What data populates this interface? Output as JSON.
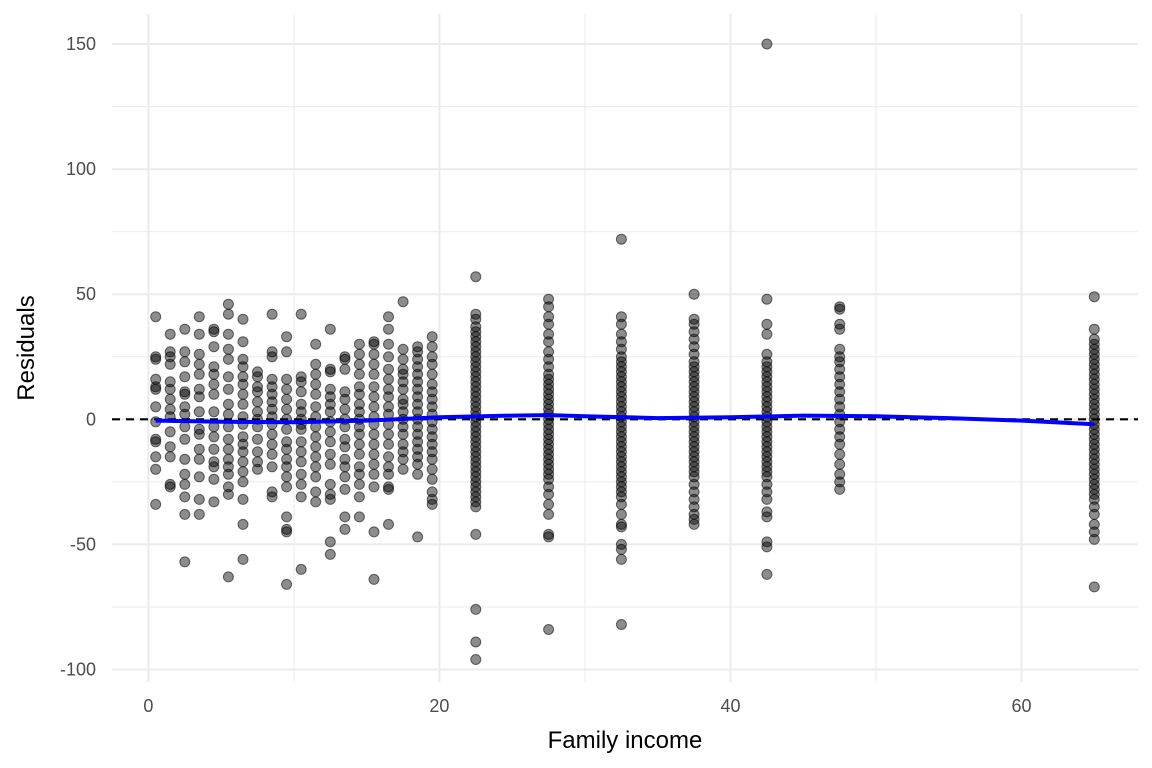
{
  "chart_data": {
    "type": "scatter",
    "title": "",
    "xlabel": "Family income",
    "ylabel": "Residuals",
    "xlim": [
      -2.5,
      68
    ],
    "ylim": [
      -105,
      162
    ],
    "x_ticks": [
      0,
      20,
      40,
      60
    ],
    "x_tick_labels": [
      "0",
      "20",
      "40",
      "60"
    ],
    "y_ticks": [
      -100,
      -50,
      0,
      50,
      100,
      150
    ],
    "y_tick_labels": [
      "-100",
      "-50",
      "0",
      "50",
      "100",
      "150"
    ],
    "grid": true,
    "legend": "none",
    "colors": {
      "points": "#000000",
      "smooth": "#0000ff",
      "reference": "#000000",
      "grid": "#ebebeb"
    },
    "reference_line": {
      "y": 0,
      "style": "dashed"
    },
    "columns": [
      {
        "x": 0.5,
        "y": [
          41,
          25,
          24,
          16,
          13,
          12,
          5,
          -1,
          -8,
          -9,
          -15,
          -20,
          -34
        ]
      },
      {
        "x": 1.5,
        "y": [
          34,
          27,
          25,
          22,
          15,
          12,
          8,
          4,
          1,
          -5,
          -11,
          -15,
          -26,
          -27
        ]
      },
      {
        "x": 2.5,
        "y": [
          36,
          27,
          23,
          17,
          11,
          10,
          5,
          2,
          -3,
          -8,
          -16,
          -22,
          -26,
          -31,
          -38,
          -57
        ]
      },
      {
        "x": 3.5,
        "y": [
          41,
          34,
          26,
          22,
          18,
          12,
          9,
          3,
          -4,
          -6,
          -12,
          -16,
          -23,
          -32,
          -38
        ]
      },
      {
        "x": 4.5,
        "y": [
          36,
          35,
          29,
          21,
          18,
          14,
          10,
          3,
          -3,
          -7,
          -12,
          -17,
          -19,
          -24,
          -33
        ]
      },
      {
        "x": 5.5,
        "y": [
          46,
          42,
          34,
          28,
          24,
          17,
          12,
          6,
          2,
          -3,
          -8,
          -12,
          -16,
          -19,
          -22,
          -27,
          -30,
          -63
        ]
      },
      {
        "x": 6.5,
        "y": [
          40,
          31,
          24,
          21,
          17,
          14,
          10,
          6,
          1,
          -2,
          -7,
          -10,
          -13,
          -17,
          -21,
          -25,
          -32,
          -42,
          -56
        ]
      },
      {
        "x": 7.5,
        "y": [
          19,
          17,
          13,
          11,
          7,
          3,
          0,
          -3,
          -8,
          -13,
          -17,
          -20
        ]
      },
      {
        "x": 8.5,
        "y": [
          42,
          27,
          25,
          16,
          13,
          10,
          7,
          4,
          1,
          -2,
          -6,
          -10,
          -14,
          -19,
          -29,
          -31
        ]
      },
      {
        "x": 9.5,
        "y": [
          33,
          27,
          16,
          12,
          8,
          4,
          0,
          -4,
          -9,
          -12,
          -16,
          -19,
          -23,
          -27,
          -39,
          -44,
          -45,
          -66
        ]
      },
      {
        "x": 10.5,
        "y": [
          42,
          17,
          15,
          11,
          6,
          3,
          0,
          -2,
          -4,
          -9,
          -13,
          -17,
          -22,
          -26,
          -31,
          -60
        ]
      },
      {
        "x": 11.5,
        "y": [
          30,
          22,
          18,
          14,
          10,
          5,
          1,
          -3,
          -7,
          -11,
          -15,
          -19,
          -23,
          -29,
          -33
        ]
      },
      {
        "x": 12.5,
        "y": [
          36,
          20,
          19,
          12,
          9,
          6,
          3,
          -1,
          -5,
          -9,
          -14,
          -18,
          -26,
          -30,
          -32,
          -49,
          -54
        ]
      },
      {
        "x": 13.5,
        "y": [
          25,
          24,
          20,
          11,
          8,
          4,
          0,
          -3,
          -8,
          -11,
          -16,
          -19,
          -23,
          -28,
          -39,
          -44
        ]
      },
      {
        "x": 14.5,
        "y": [
          30,
          26,
          22,
          18,
          13,
          10,
          6,
          3,
          0,
          -3,
          -6,
          -10,
          -14,
          -19,
          -22,
          -26,
          -31,
          -39
        ]
      },
      {
        "x": 15.5,
        "y": [
          31,
          30,
          26,
          22,
          18,
          13,
          9,
          5,
          1,
          -2,
          -6,
          -10,
          -14,
          -18,
          -22,
          -27,
          -45,
          -64
        ]
      },
      {
        "x": 16.5,
        "y": [
          41,
          36,
          30,
          25,
          20,
          16,
          12,
          9,
          5,
          2,
          -2,
          -6,
          -10,
          -15,
          -19,
          -22,
          -27,
          -28,
          -42
        ]
      },
      {
        "x": 17.5,
        "y": [
          47,
          28,
          24,
          20,
          18,
          15,
          12,
          8,
          6,
          3,
          0,
          -3,
          -6,
          -10,
          -13,
          -16,
          -20
        ]
      },
      {
        "x": 18.5,
        "y": [
          29,
          27,
          24,
          21,
          18,
          15,
          12,
          9,
          6,
          3,
          0,
          -3,
          -6,
          -9,
          -12,
          -15,
          -18,
          -22,
          -47
        ]
      },
      {
        "x": 19.5,
        "y": [
          33,
          29,
          25,
          22,
          18,
          14,
          11,
          8,
          5,
          2,
          -1,
          -4,
          -7,
          -10,
          -13,
          -16,
          -20,
          -24,
          -29,
          -32,
          -34
        ]
      },
      {
        "x": 22.5,
        "y": [
          57,
          42,
          40,
          37,
          35,
          33,
          31,
          29,
          27,
          25,
          23,
          21,
          19,
          17,
          15,
          13,
          11,
          9,
          7,
          5,
          3,
          1,
          -1,
          -3,
          -5,
          -7,
          -9,
          -11,
          -13,
          -15,
          -17,
          -19,
          -21,
          -23,
          -25,
          -27,
          -29,
          -31,
          -33,
          -35,
          -46,
          -76,
          -89,
          -96
        ]
      },
      {
        "x": 27.5,
        "y": [
          48,
          45,
          41,
          38,
          34,
          31,
          27,
          24,
          21,
          18,
          16,
          14,
          12,
          10,
          8,
          6,
          4,
          2,
          0,
          -2,
          -4,
          -6,
          -8,
          -10,
          -12,
          -14,
          -16,
          -18,
          -20,
          -22,
          -24,
          -27,
          -30,
          -34,
          -38,
          -46,
          -47,
          -84
        ]
      },
      {
        "x": 32.5,
        "y": [
          72,
          41,
          38,
          34,
          31,
          28,
          25,
          23,
          21,
          19,
          17,
          15,
          13,
          11,
          9,
          7,
          5,
          3,
          1,
          -1,
          -3,
          -5,
          -7,
          -9,
          -11,
          -13,
          -15,
          -17,
          -19,
          -21,
          -23,
          -25,
          -27,
          -29,
          -31,
          -34,
          -38,
          -42,
          -43,
          -50,
          -52,
          -56,
          -82
        ]
      },
      {
        "x": 37.5,
        "y": [
          50,
          40,
          38,
          35,
          32,
          29,
          26,
          23,
          21,
          19,
          17,
          15,
          13,
          11,
          9,
          7,
          5,
          3,
          1,
          -1,
          -3,
          -5,
          -7,
          -9,
          -11,
          -13,
          -15,
          -17,
          -19,
          -21,
          -23,
          -26,
          -29,
          -32,
          -35,
          -38,
          -40,
          -42
        ]
      },
      {
        "x": 42.5,
        "y": [
          150,
          48,
          38,
          34,
          26,
          23,
          21,
          19,
          17,
          15,
          13,
          11,
          9,
          7,
          5,
          3,
          1,
          -1,
          -3,
          -5,
          -7,
          -9,
          -11,
          -13,
          -15,
          -17,
          -19,
          -21,
          -23,
          -26,
          -29,
          -32,
          -37,
          -39,
          -49,
          -51,
          -62
        ]
      },
      {
        "x": 47.5,
        "y": [
          45,
          44,
          38,
          36,
          28,
          25,
          23,
          20,
          17,
          14,
          11,
          8,
          5,
          2,
          -1,
          -4,
          -7,
          -10,
          -14,
          -18,
          -22,
          -25,
          -28
        ]
      },
      {
        "x": 65,
        "y": [
          49,
          36,
          32,
          30,
          28,
          26,
          24,
          22,
          20,
          18,
          16,
          14,
          12,
          10,
          8,
          6,
          4,
          2,
          0,
          -2,
          -4,
          -6,
          -8,
          -10,
          -12,
          -14,
          -16,
          -18,
          -20,
          -22,
          -24,
          -26,
          -28,
          -30,
          -32,
          -35,
          -38,
          -42,
          -45,
          -48,
          -67
        ]
      }
    ],
    "smooth_line": {
      "x": [
        0.5,
        5,
        10,
        15,
        20,
        25,
        27.5,
        30,
        35,
        40,
        45,
        50,
        55,
        60,
        65
      ],
      "y": [
        -0.5,
        -1,
        -1.2,
        -0.5,
        0.8,
        1.5,
        1.7,
        1.2,
        0.5,
        0.8,
        1.5,
        1.2,
        0.5,
        -0.5,
        -2
      ]
    }
  }
}
